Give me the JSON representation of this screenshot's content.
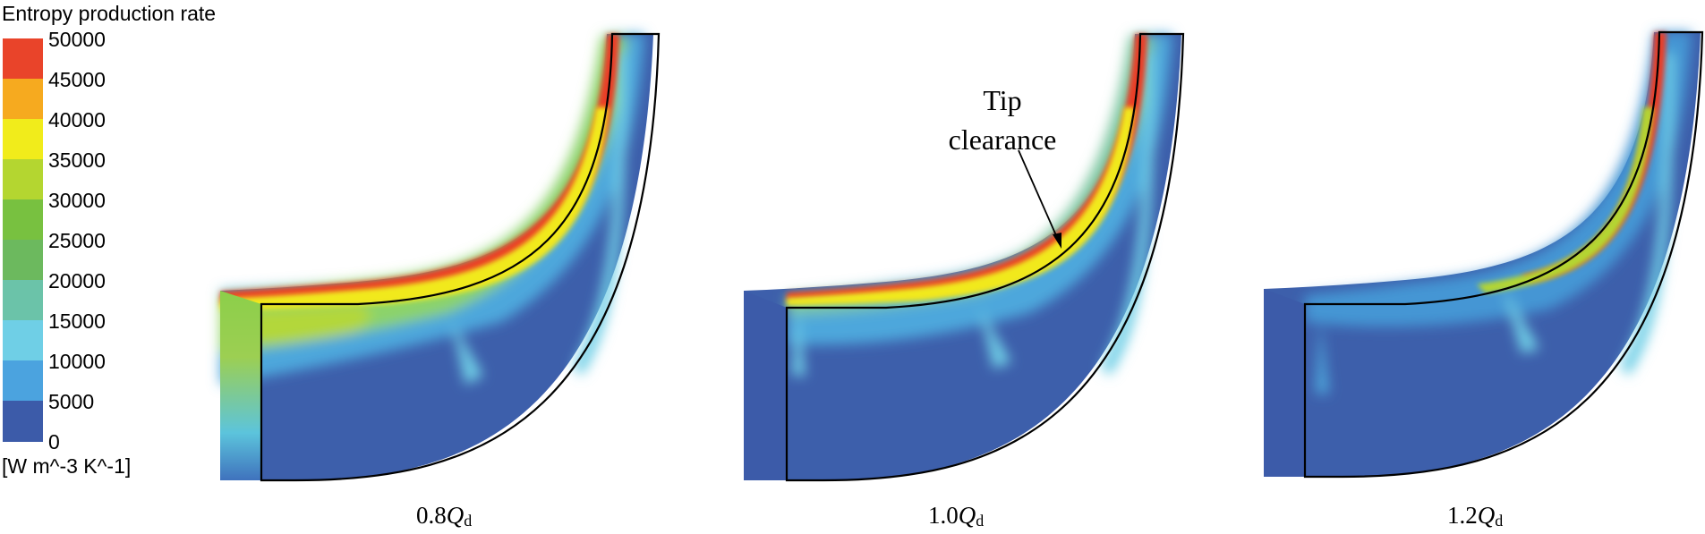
{
  "legend": {
    "title": "Entropy production rate",
    "unit": "[W m^-3 K^-1]",
    "ticks": [
      "50000",
      "45000",
      "40000",
      "35000",
      "30000",
      "25000",
      "20000",
      "15000",
      "10000",
      "5000",
      "0"
    ],
    "colors": [
      "#e9442a",
      "#f6aa1f",
      "#f1ec1b",
      "#b4d630",
      "#78c140",
      "#6cb95e",
      "#6bc3a9",
      "#6fcfe6",
      "#4ba3df",
      "#3c5ba9"
    ]
  },
  "panels": [
    {
      "value": "0.8",
      "symbol": "Q",
      "subscript": "d"
    },
    {
      "value": "1.0",
      "symbol": "Q",
      "subscript": "d"
    },
    {
      "value": "1.2",
      "symbol": "Q",
      "subscript": "d"
    }
  ],
  "annotation": {
    "line1": "Tip",
    "line2": "clearance"
  }
}
